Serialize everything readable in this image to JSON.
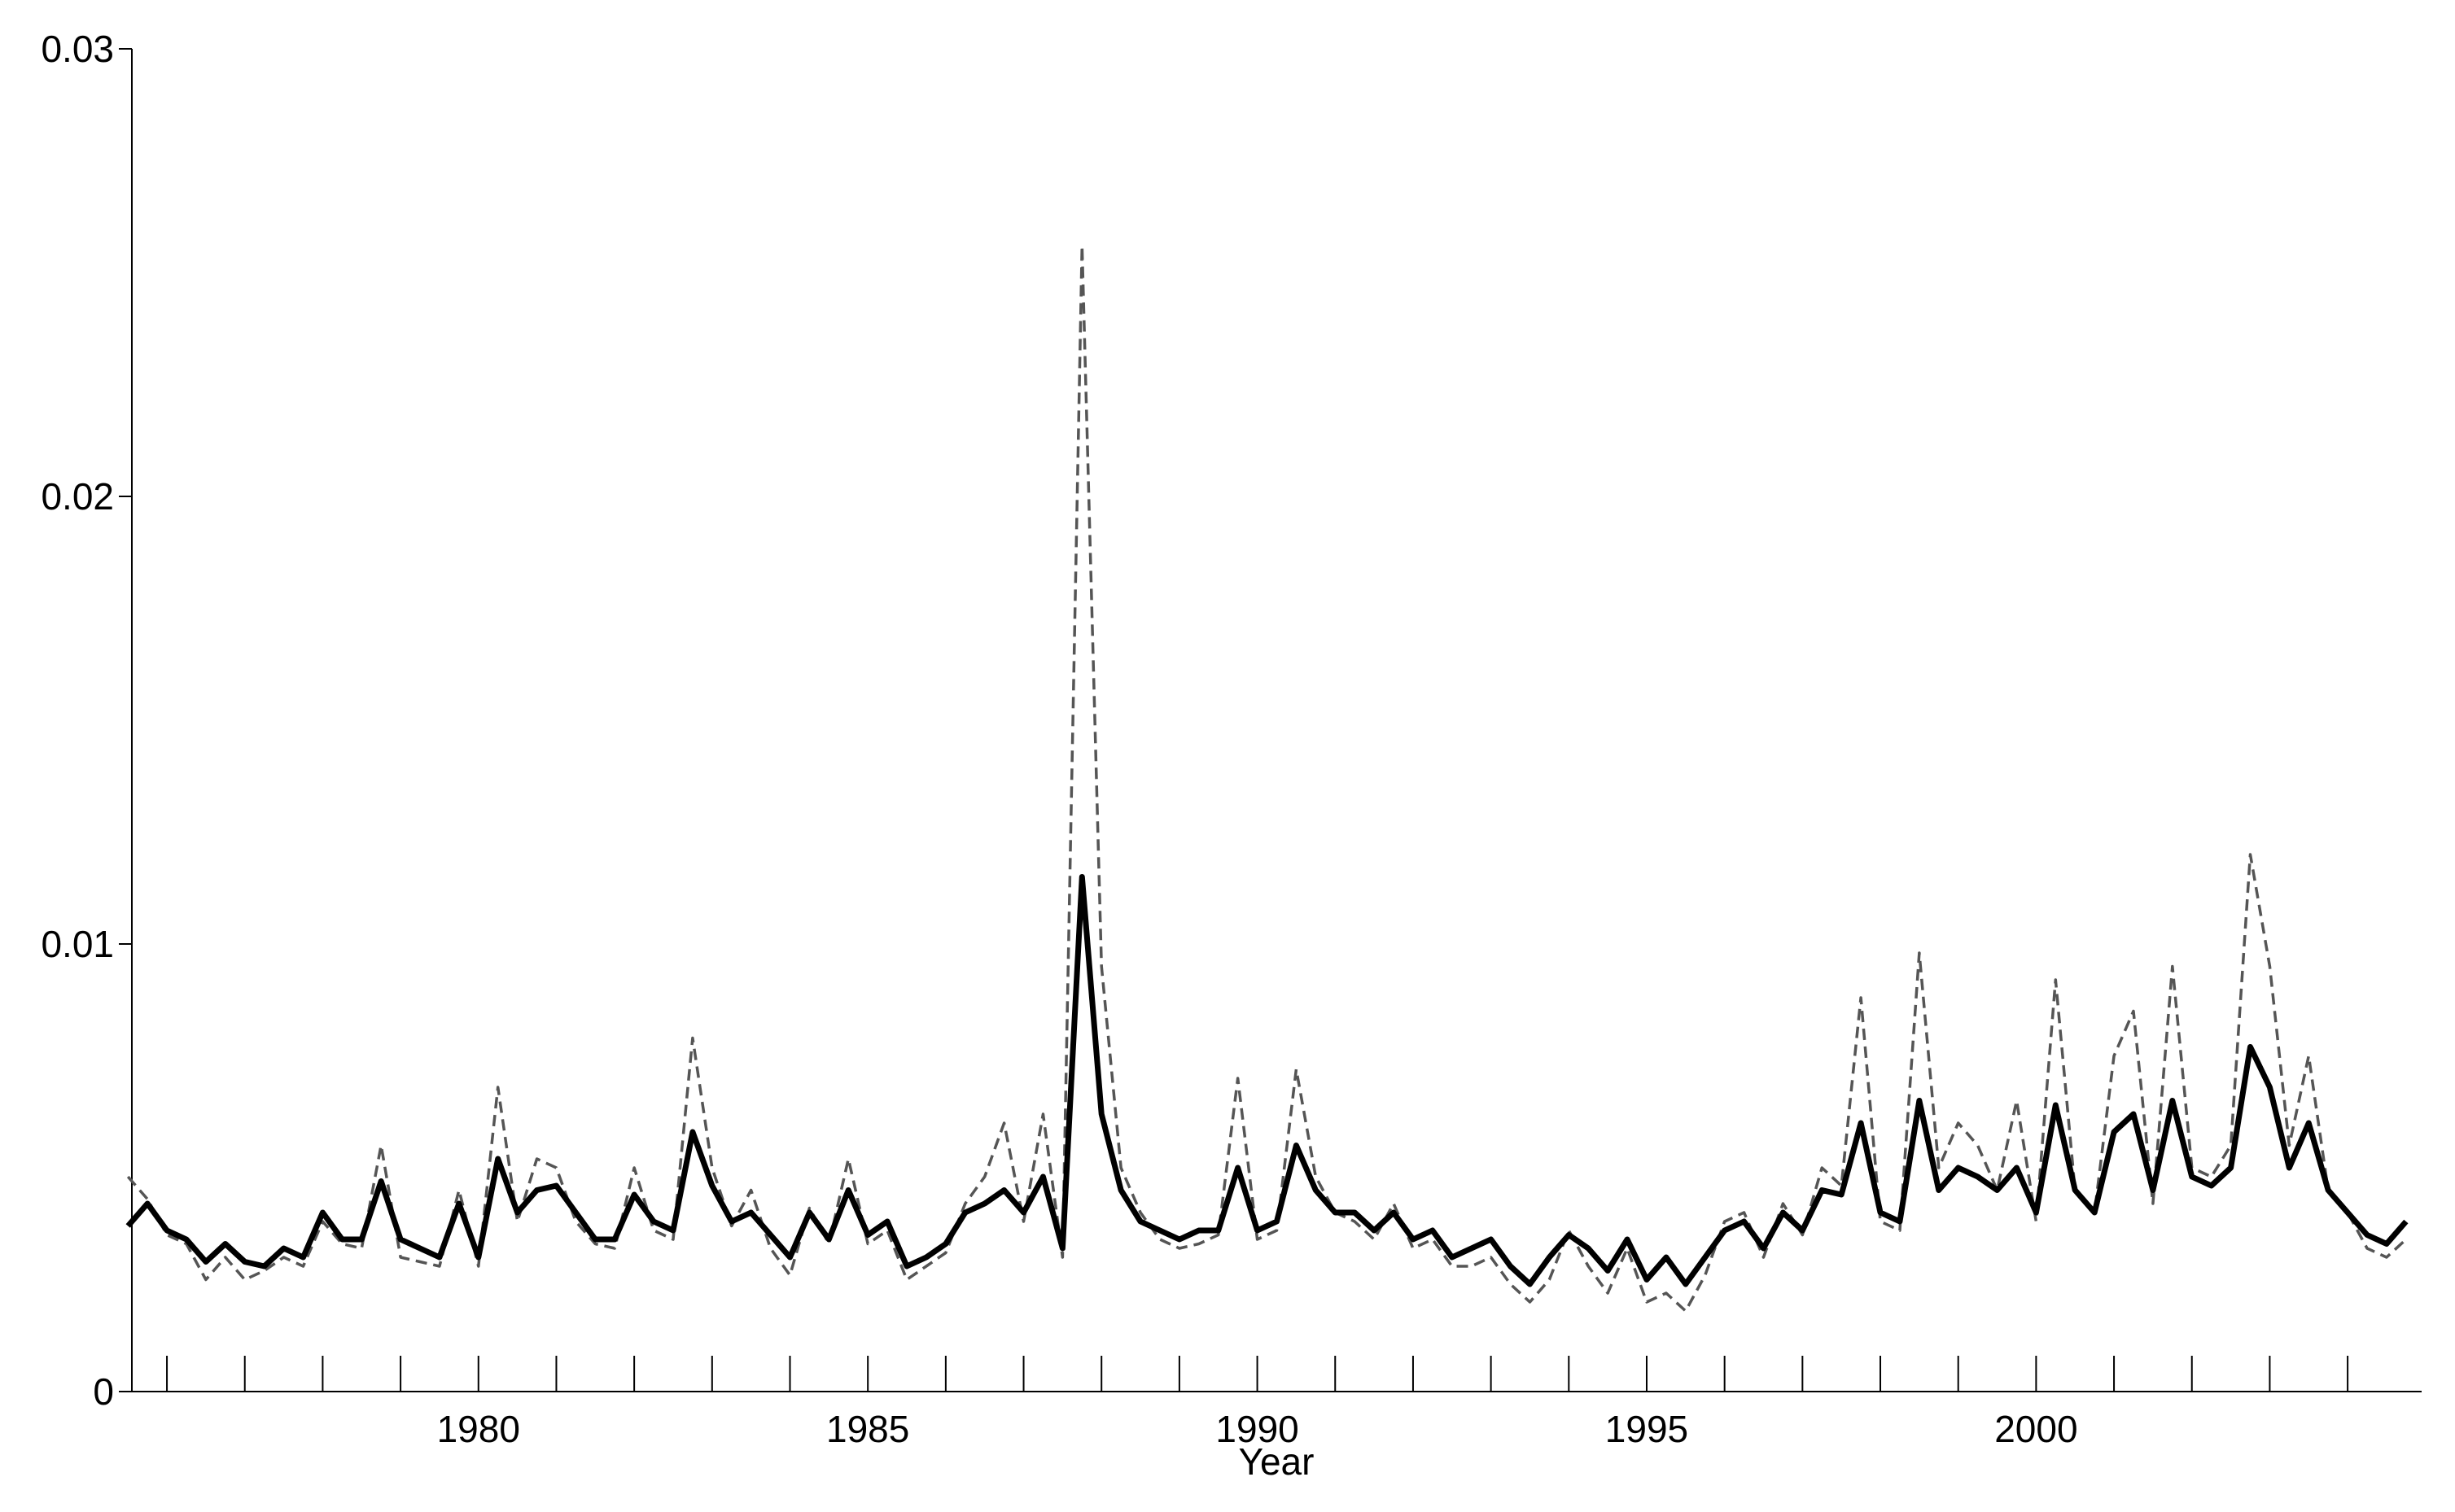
{
  "chart_data": {
    "type": "line",
    "x_label": "Year",
    "xlim": [
      1975.55,
      2004.95
    ],
    "xticks": [
      1980,
      1985,
      1990,
      1995,
      2000
    ],
    "xminorticks": [
      1976,
      1977,
      1978,
      1979,
      1981,
      1982,
      1983,
      1984,
      1986,
      1987,
      1988,
      1989,
      1991,
      1992,
      1993,
      1994,
      1996,
      1997,
      1998,
      1999,
      2001,
      2002,
      2003,
      2004
    ],
    "ylim": [
      0,
      0.03
    ],
    "yticks": [
      0,
      0.01,
      0.02,
      0.03
    ],
    "x": [
      1975.5,
      1975.75,
      1976,
      1976.25,
      1976.5,
      1976.75,
      1977,
      1977.25,
      1977.5,
      1977.75,
      1978,
      1978.25,
      1978.5,
      1978.75,
      1979,
      1979.25,
      1979.5,
      1979.75,
      1980,
      1980.25,
      1980.5,
      1980.75,
      1981,
      1981.25,
      1981.5,
      1981.75,
      1982,
      1982.25,
      1982.5,
      1982.75,
      1983,
      1983.25,
      1983.5,
      1983.75,
      1984,
      1984.25,
      1984.5,
      1984.75,
      1985,
      1985.25,
      1985.5,
      1985.75,
      1986,
      1986.25,
      1986.5,
      1986.75,
      1987,
      1987.25,
      1987.5,
      1987.75,
      1988,
      1988.25,
      1988.5,
      1988.75,
      1989,
      1989.25,
      1989.5,
      1989.75,
      1990,
      1990.25,
      1990.5,
      1990.75,
      1991,
      1991.25,
      1991.5,
      1991.75,
      1992,
      1992.25,
      1992.5,
      1992.75,
      1993,
      1993.25,
      1993.5,
      1993.75,
      1994,
      1994.25,
      1994.5,
      1994.75,
      1995,
      1995.25,
      1995.5,
      1995.75,
      1996,
      1996.25,
      1996.5,
      1996.75,
      1997,
      1997.25,
      1997.5,
      1997.75,
      1998,
      1998.25,
      1998.5,
      1998.75,
      1999,
      1999.25,
      1999.5,
      1999.75,
      2000,
      2000.25,
      2000.5,
      2000.75,
      2001,
      2001.25,
      2001.5,
      2001.75,
      2002,
      2002.25,
      2002.5,
      2002.75,
      2003,
      2003.25,
      2003.5,
      2003.75,
      2004,
      2004.25,
      2004.5,
      2004.75
    ],
    "series": [
      {
        "color": "#000000",
        "style": "solid",
        "values": [
          0.0037,
          0.0042,
          0.0036,
          0.0034,
          0.0029,
          0.0033,
          0.0029,
          0.0028,
          0.0032,
          0.003,
          0.004,
          0.0034,
          0.0034,
          0.0047,
          0.0034,
          0.0032,
          0.003,
          0.0042,
          0.003,
          0.0052,
          0.004,
          0.0045,
          0.0046,
          0.004,
          0.0034,
          0.0034,
          0.0044,
          0.0038,
          0.0036,
          0.0058,
          0.0046,
          0.0038,
          0.004,
          0.0035,
          0.003,
          0.004,
          0.0034,
          0.0045,
          0.0035,
          0.0038,
          0.0028,
          0.003,
          0.0033,
          0.004,
          0.0042,
          0.0045,
          0.004,
          0.0048,
          0.0032,
          0.0115,
          0.0062,
          0.0045,
          0.0038,
          0.0036,
          0.0034,
          0.0036,
          0.0036,
          0.005,
          0.0036,
          0.0038,
          0.0055,
          0.0045,
          0.004,
          0.004,
          0.0036,
          0.004,
          0.0034,
          0.0036,
          0.003,
          0.0032,
          0.0034,
          0.0028,
          0.0024,
          0.003,
          0.0035,
          0.0032,
          0.0027,
          0.0034,
          0.0025,
          0.003,
          0.0024,
          0.003,
          0.0036,
          0.0038,
          0.0032,
          0.004,
          0.0036,
          0.0045,
          0.0044,
          0.006,
          0.004,
          0.0038,
          0.0065,
          0.0045,
          0.005,
          0.0048,
          0.0045,
          0.005,
          0.004,
          0.0064,
          0.0045,
          0.004,
          0.0058,
          0.0062,
          0.0045,
          0.0065,
          0.0048,
          0.0046,
          0.005,
          0.0077,
          0.0068,
          0.005,
          0.006,
          0.0045,
          0.004,
          0.0035,
          0.0033,
          0.0038
        ]
      },
      {
        "color": "#555555",
        "style": "dashed",
        "values": [
          0.0048,
          0.0043,
          0.0035,
          0.0033,
          0.0025,
          0.003,
          0.0025,
          0.0027,
          0.003,
          0.0028,
          0.0038,
          0.0033,
          0.0032,
          0.0055,
          0.003,
          0.0029,
          0.0028,
          0.0045,
          0.0028,
          0.0068,
          0.0038,
          0.0052,
          0.005,
          0.0038,
          0.0033,
          0.0032,
          0.005,
          0.0036,
          0.0034,
          0.0079,
          0.005,
          0.0037,
          0.0045,
          0.0032,
          0.0026,
          0.0041,
          0.0033,
          0.0052,
          0.0033,
          0.0036,
          0.0025,
          0.0028,
          0.0031,
          0.0042,
          0.0048,
          0.006,
          0.0038,
          0.0062,
          0.003,
          0.0256,
          0.0095,
          0.005,
          0.004,
          0.0034,
          0.0032,
          0.0033,
          0.0035,
          0.007,
          0.0034,
          0.0036,
          0.0072,
          0.0048,
          0.004,
          0.0038,
          0.0034,
          0.0042,
          0.0032,
          0.0034,
          0.0028,
          0.0028,
          0.003,
          0.0024,
          0.002,
          0.0025,
          0.0036,
          0.0028,
          0.0022,
          0.0032,
          0.002,
          0.0022,
          0.0018,
          0.0026,
          0.0038,
          0.004,
          0.003,
          0.0042,
          0.0035,
          0.005,
          0.0046,
          0.0088,
          0.0038,
          0.0036,
          0.0098,
          0.005,
          0.006,
          0.0055,
          0.0045,
          0.0065,
          0.0038,
          0.0092,
          0.0045,
          0.004,
          0.0075,
          0.0085,
          0.0042,
          0.0095,
          0.005,
          0.0048,
          0.0055,
          0.012,
          0.0095,
          0.0055,
          0.0075,
          0.0045,
          0.004,
          0.0032,
          0.003,
          0.0034
        ]
      }
    ]
  }
}
